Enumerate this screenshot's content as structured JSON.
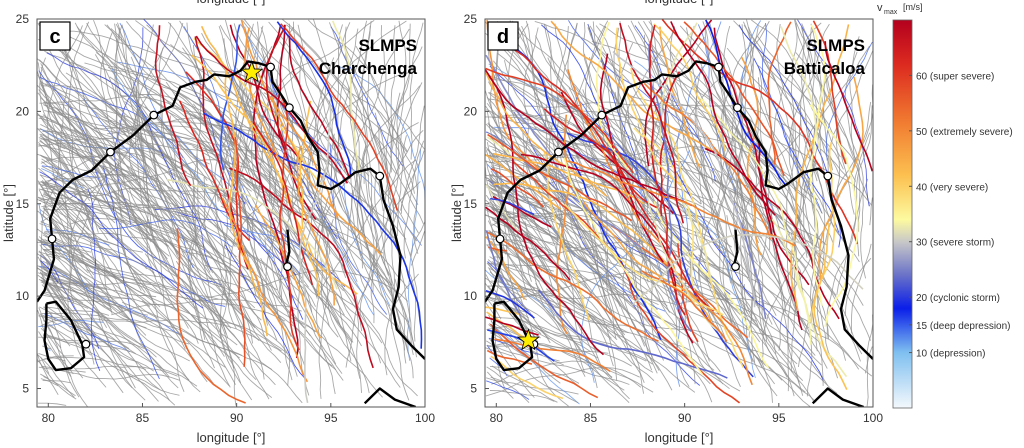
{
  "chart_data": [
    {
      "type": "line",
      "panel_label": "c",
      "title_line1": "SLMPS",
      "title_line2": "Charchenga",
      "xlabel": "longitude [°]",
      "ylabel": "latitude [°]",
      "top_label": "longitude [°]",
      "xlim": [
        79.4,
        100
      ],
      "ylim": [
        4,
        25
      ],
      "xticks": [
        "80",
        "85",
        "90",
        "95",
        "100"
      ],
      "yticks": [
        "5",
        "10",
        "15",
        "20",
        "25"
      ],
      "star": {
        "lon": 90.8,
        "lat": 22.1
      }
    },
    {
      "type": "line",
      "panel_label": "d",
      "title_line1": "SLMPS",
      "title_line2": "Batticaloa",
      "xlabel": "longitude [°]",
      "ylabel": "latitude [°]",
      "top_label": "longitude [°]",
      "xlim": [
        79.4,
        100
      ],
      "ylim": [
        4,
        25
      ],
      "xticks": [
        "80",
        "85",
        "90",
        "95",
        "100"
      ],
      "yticks": [
        "5",
        "10",
        "15",
        "20",
        "25"
      ],
      "star": {
        "lon": 81.7,
        "lat": 7.6
      }
    }
  ],
  "colorbar": {
    "label_main": "v",
    "label_sub": "max",
    "label_unit": "[m/s]",
    "range": [
      0,
      70
    ],
    "ticks": [
      {
        "value": 60,
        "label": "60 (super severe)"
      },
      {
        "value": 50,
        "label": "50 (extremely severe)"
      },
      {
        "value": 40,
        "label": "40 (very severe)"
      },
      {
        "value": 30,
        "label": "30 (severe storm)"
      },
      {
        "value": 20,
        "label": "20 (cyclonic storm)"
      },
      {
        "value": 15,
        "label": "15 (deep depression)"
      },
      {
        "value": 10,
        "label": "10 (depression)"
      }
    ],
    "stops": [
      {
        "v": 0,
        "c": "#f4f8fc"
      },
      {
        "v": 10,
        "c": "#7fc0f0"
      },
      {
        "v": 18,
        "c": "#0a1ee8"
      },
      {
        "v": 24,
        "c": "#6a72c8"
      },
      {
        "v": 30,
        "c": "#c8c8c8"
      },
      {
        "v": 34,
        "c": "#fdfaa0"
      },
      {
        "v": 42,
        "c": "#fcc050"
      },
      {
        "v": 52,
        "c": "#f07830"
      },
      {
        "v": 62,
        "c": "#dc2a20"
      },
      {
        "v": 70,
        "c": "#b4001e"
      }
    ]
  },
  "stations": [
    [
      80.2,
      13.1
    ],
    [
      83.3,
      17.8
    ],
    [
      85.6,
      19.8
    ],
    [
      91.8,
      22.4
    ],
    [
      92.8,
      20.2
    ],
    [
      97.6,
      16.5
    ],
    [
      92.7,
      11.6
    ],
    [
      82.0,
      7.4
    ]
  ]
}
